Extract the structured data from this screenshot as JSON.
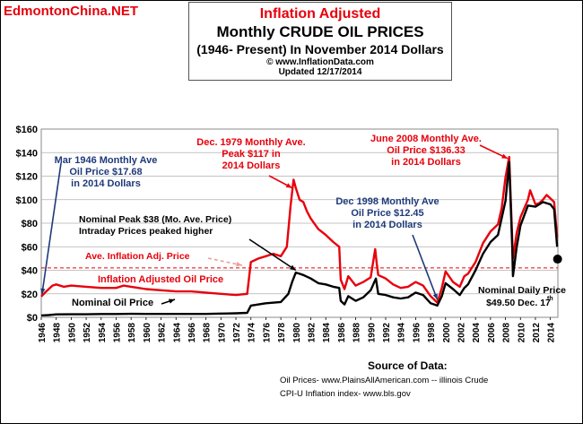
{
  "watermark": "EdmontonChina.NET",
  "title": {
    "line1": "Inflation Adjusted",
    "line2": "Monthly CRUDE OIL PRICES",
    "line3": "(1946- Present) In November 2014 Dollars",
    "line4": "© www.InflationData.com",
    "line5": "Updated 12/17/2014"
  },
  "source": {
    "heading": "Source of Data:",
    "line1": "Oil Prices- www.PlainsAllAmerican.com -- illinois Crude",
    "line2": "CPI-U Inflation index-   www.bls.gov"
  },
  "colors": {
    "inflation_adjusted": "#e8000b",
    "nominal": "#000000",
    "annotation_blue": "#1f3a7a",
    "grid": "#b0b0b0"
  },
  "chart_data": {
    "type": "line",
    "xlim": [
      1946,
      2015
    ],
    "ylim": [
      0,
      160
    ],
    "y_ticks": [
      "$0",
      "$20",
      "$40",
      "$60",
      "$80",
      "$100",
      "$120",
      "$140",
      "$160"
    ],
    "x_ticks": [
      "1946",
      "1948",
      "1950",
      "1952",
      "1954",
      "1956",
      "1958",
      "1960",
      "1962",
      "1964",
      "1966",
      "1968",
      "1970",
      "1972",
      "1974",
      "1976",
      "1978",
      "1980",
      "1982",
      "1984",
      "1986",
      "1988",
      "1990",
      "1992",
      "1994",
      "1996",
      "1998",
      "2000",
      "2002",
      "2004",
      "2006",
      "2008",
      "2010",
      "2012",
      "2014"
    ],
    "average_line": {
      "label": "Ave. Inflation Adj. Price",
      "value": 42
    },
    "series": [
      {
        "name": "Inflation Adjusted Oil Price",
        "x": [
          1946,
          1946.5,
          1947,
          1947.5,
          1948,
          1949,
          1950,
          1952,
          1954,
          1956,
          1957,
          1958,
          1960,
          1962,
          1964,
          1966,
          1968,
          1970,
          1972,
          1973.5,
          1974,
          1975,
          1976,
          1977,
          1978,
          1978.8,
          1979.3,
          1979.7,
          1980,
          1980.5,
          1981,
          1981.5,
          1982,
          1983,
          1984,
          1985,
          1985.8,
          1986,
          1986.5,
          1987,
          1988,
          1989,
          1990,
          1990.6,
          1990.8,
          1991,
          1992,
          1993,
          1994,
          1995,
          1996,
          1997,
          1998,
          1998.9,
          1999.5,
          2000,
          2001,
          2001.9,
          2002.5,
          2003,
          2004,
          2005,
          2006,
          2007,
          2007.5,
          2008,
          2008.5,
          2008.8,
          2009,
          2009.5,
          2010,
          2011,
          2011.3,
          2012,
          2012.5,
          2013,
          2013.5,
          2014,
          2014.5,
          2014.9
        ],
        "values": [
          17.68,
          21,
          24,
          27,
          28,
          26,
          27,
          26,
          25,
          25,
          27,
          26,
          24,
          23,
          22,
          22,
          21,
          20,
          19,
          20,
          47,
          50,
          52,
          54,
          52,
          60,
          95,
          117,
          110,
          100,
          98,
          90,
          84,
          75,
          70,
          64,
          60,
          32,
          24,
          35,
          27,
          30,
          34,
          58,
          46,
          36,
          33,
          28,
          25,
          26,
          30,
          27,
          18,
          12.45,
          25,
          39,
          30,
          26,
          35,
          37,
          47,
          63,
          73,
          79,
          93,
          119,
          136.33,
          85,
          50,
          72,
          85,
          100,
          108,
          96,
          97,
          100,
          104,
          101,
          98,
          68
        ]
      },
      {
        "name": "Nominal Oil Price",
        "x": [
          1946,
          1947,
          1948,
          1950,
          1952,
          1954,
          1956,
          1958,
          1960,
          1962,
          1964,
          1966,
          1968,
          1970,
          1972,
          1973.5,
          1974,
          1976,
          1978,
          1979,
          1979.5,
          1980,
          1980.5,
          1981,
          1982,
          1983,
          1984,
          1985,
          1985.8,
          1986,
          1986.5,
          1987,
          1988,
          1989,
          1990,
          1990.7,
          1991,
          1992,
          1993,
          1994,
          1995,
          1996,
          1997,
          1998,
          1998.9,
          1999.5,
          2000,
          2001,
          2001.9,
          2002.5,
          2003,
          2004,
          2005,
          2006,
          2007,
          2008,
          2008.5,
          2008.9,
          2009,
          2009.5,
          2010,
          2011,
          2012,
          2013,
          2014,
          2014.5,
          2014.9
        ],
        "values": [
          1.6,
          1.9,
          2.5,
          2.6,
          2.6,
          2.8,
          2.8,
          3,
          2.9,
          2.9,
          2.9,
          2.9,
          2.9,
          3.2,
          3.4,
          3.8,
          10,
          12,
          13,
          20,
          30,
          38,
          37,
          36,
          33,
          29,
          28,
          26,
          25,
          14,
          11,
          18,
          14,
          17,
          23,
          33,
          20,
          19,
          17,
          16,
          17,
          21,
          19,
          12,
          10,
          18,
          29,
          24,
          19,
          25,
          28,
          40,
          54,
          64,
          70,
          99,
          132,
          60,
          35,
          60,
          78,
          95,
          94,
          98,
          96,
          92,
          60
        ]
      }
    ],
    "annotations": [
      {
        "id": "mar1946",
        "lines": [
          "Mar 1946 Monthly Ave",
          "Oil  Price $17.68",
          "in 2014 Dollars"
        ],
        "color": "blue"
      },
      {
        "id": "dec1979",
        "lines": [
          "Dec. 1979 Monthly Ave.",
          "Peak $117 in",
          "2014 Dollars"
        ],
        "color": "red"
      },
      {
        "id": "jun2008",
        "lines": [
          "June 2008 Monthly Ave.",
          "Oil  Price $136.33",
          "in 2014 Dollars"
        ],
        "color": "red"
      },
      {
        "id": "dec1998",
        "lines": [
          "Dec 1998 Monthly Ave",
          "Oil  Price $12.45",
          "in 2014 Dollars"
        ],
        "color": "blue"
      },
      {
        "id": "nompeak",
        "lines": [
          "Nominal Peak $38 (Mo. Ave. Price)",
          "Intraday Prices peaked higher"
        ],
        "color": "black"
      },
      {
        "id": "aveinfl",
        "lines": [
          "Ave. Inflation Adj. Price"
        ],
        "color": "red"
      },
      {
        "id": "inflline",
        "lines": [
          "Inflation Adjusted Oil Price"
        ],
        "color": "red"
      },
      {
        "id": "nomline",
        "lines": [
          "Nominal Oil Price"
        ],
        "color": "black"
      },
      {
        "id": "daily",
        "lines": [
          "Nominal Daily Price",
          "$49.50 Dec. 17",
          "th"
        ],
        "color": "black",
        "point": {
          "x": 2014.96,
          "y": 49.5
        }
      }
    ]
  }
}
